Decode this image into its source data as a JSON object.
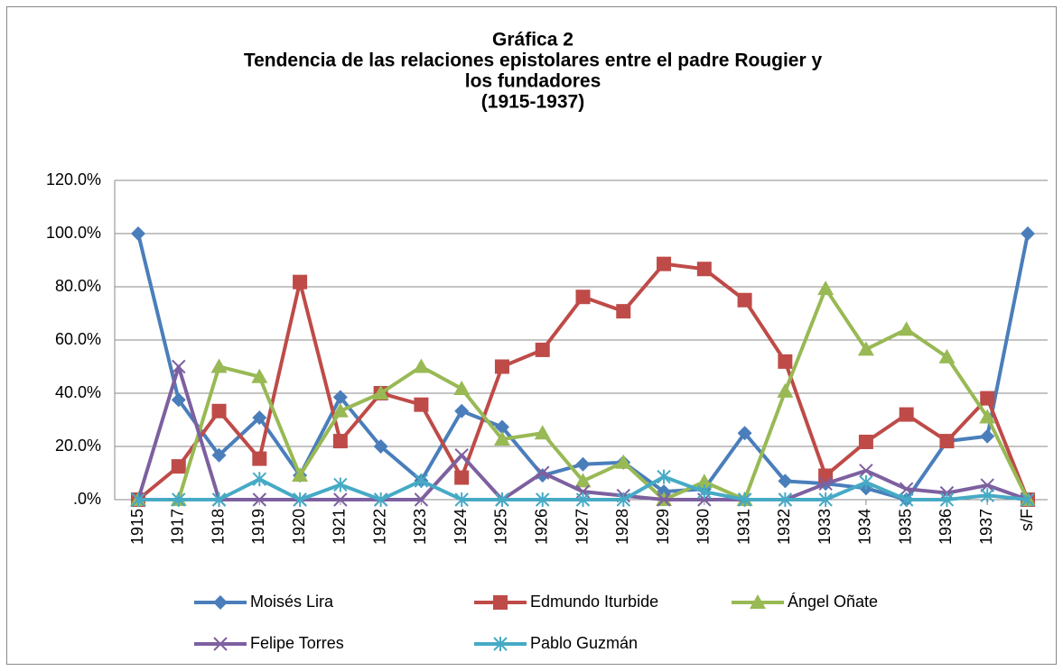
{
  "chart_data": {
    "type": "line",
    "title": [
      "Gráfica 2",
      "Tendencia de las relaciones epistolares entre el padre Rougier y",
      "los fundadores",
      "(1915-1937)"
    ],
    "categories": [
      "1915",
      "1917",
      "1918",
      "1919",
      "1920",
      "1921",
      "1922",
      "1923",
      "1924",
      "1925",
      "1926",
      "1927",
      "1928",
      "1929",
      "1930",
      "1931",
      "1932",
      "1933",
      "1934",
      "1935",
      "1936",
      "1937",
      "s/F"
    ],
    "ylim": [
      0,
      120
    ],
    "yticks": [
      {
        "value": 0,
        "label": ".0%"
      },
      {
        "value": 20,
        "label": "20.0%"
      },
      {
        "value": 40,
        "label": "40.0%"
      },
      {
        "value": 60,
        "label": "60.0%"
      },
      {
        "value": 80,
        "label": "80.0%"
      },
      {
        "value": 100,
        "label": "100.0%"
      },
      {
        "value": 120,
        "label": "120.0%"
      }
    ],
    "grid": true,
    "legend": "bottom",
    "series": [
      {
        "name": "Moisés Lira",
        "color": "#4a7ebb",
        "marker": "diamond",
        "values": [
          100,
          37.5,
          16.7,
          30.8,
          9.1,
          38.5,
          20,
          7.1,
          33.3,
          27.3,
          9.1,
          13.3,
          14,
          3,
          4,
          25,
          7,
          6,
          4.3,
          0,
          22,
          23.8,
          100
        ]
      },
      {
        "name": "Edmundo Iturbide",
        "color": "#be4b48",
        "marker": "square",
        "values": [
          0,
          12.5,
          33.3,
          15.4,
          81.8,
          22,
          40,
          35.7,
          8.3,
          50,
          56.3,
          76.2,
          70.8,
          88.6,
          86.7,
          75,
          51.9,
          9,
          21.7,
          32,
          22,
          38.1,
          0
        ]
      },
      {
        "name": "Ángel Oñate",
        "color": "#98b954",
        "marker": "triangle",
        "values": [
          0,
          0,
          50,
          46.2,
          9.1,
          33.3,
          40,
          50,
          41.7,
          22.7,
          25,
          7,
          14,
          0,
          6.7,
          0,
          40.7,
          79.3,
          56.5,
          64,
          53.6,
          31,
          0
        ]
      },
      {
        "name": "Felipe Torres",
        "color": "#7d60a0",
        "marker": "x",
        "values": [
          0,
          50,
          0,
          0,
          0,
          0,
          0,
          0,
          16.7,
          0,
          10.1,
          3,
          1.5,
          0,
          0,
          0,
          0,
          6,
          10.9,
          4,
          2.5,
          5.4,
          0
        ]
      },
      {
        "name": "Pablo Guzmán",
        "color": "#46aac5",
        "marker": "star",
        "values": [
          0,
          0,
          0,
          7.7,
          0,
          5.6,
          0,
          7.1,
          0,
          0,
          0,
          0,
          0,
          8.6,
          3,
          0,
          0,
          0,
          6.5,
          0,
          0,
          1.6,
          0
        ]
      }
    ]
  }
}
